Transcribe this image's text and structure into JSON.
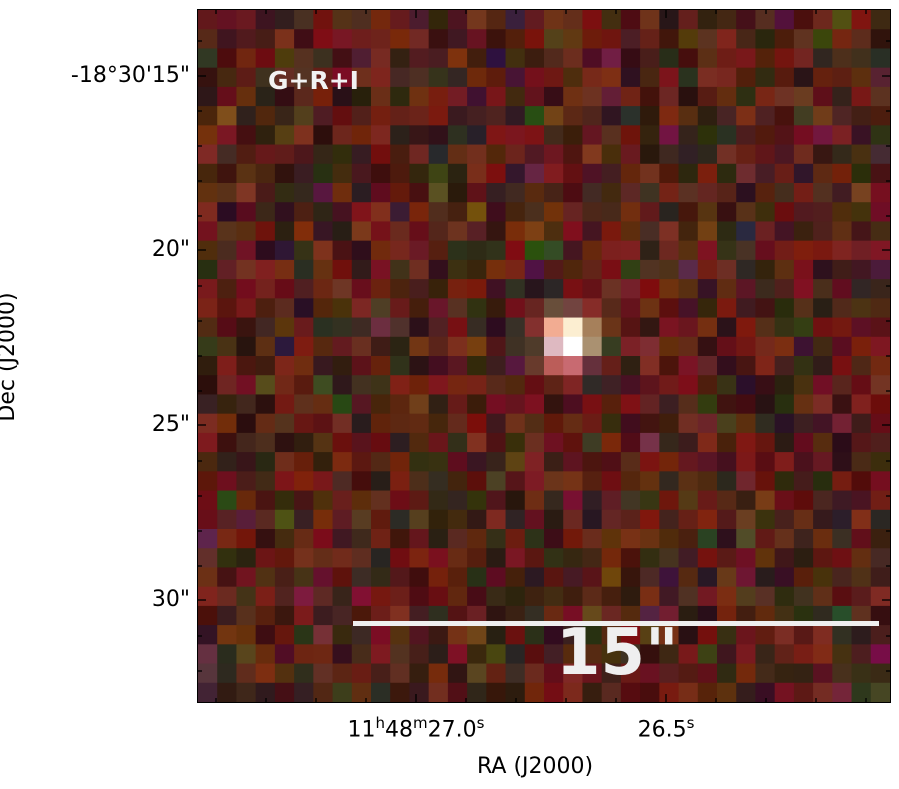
{
  "image": {
    "band_label": "G+R+I",
    "scale_bar_label": "15\"",
    "colors": {
      "background": "#4a1c16",
      "source": "#ffffff",
      "scale_bar": "#efefef"
    }
  },
  "axes": {
    "xlabel": "RA (J2000)",
    "ylabel": "Dec (J2000)",
    "y_ticks": [
      "-18°30'15\"",
      "20\"",
      "25\"",
      "30\""
    ],
    "x_ticks": [
      {
        "h": "11",
        "hs": "h",
        "m": "48",
        "ms": "m",
        "s": "27.0",
        "ss": "s"
      },
      {
        "s": "26.5",
        "ss": "s"
      }
    ]
  }
}
